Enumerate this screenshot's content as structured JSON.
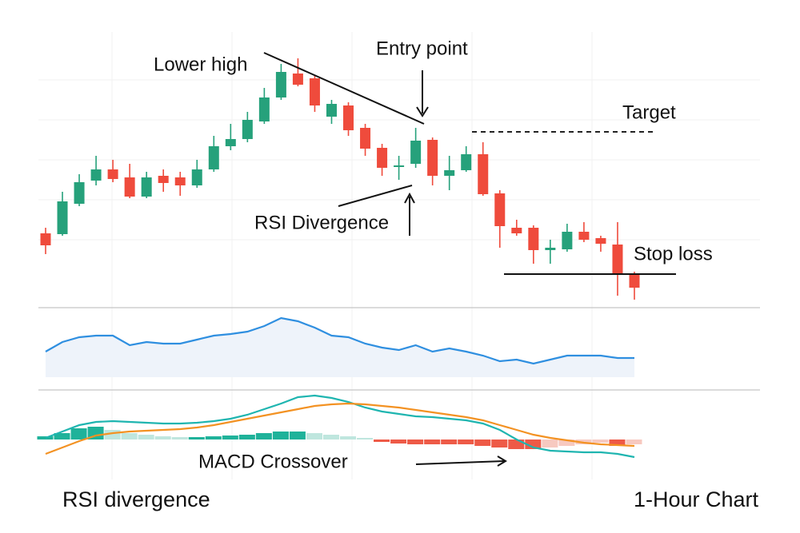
{
  "chart_data": [
    {
      "type": "candlestick",
      "up_color": "#26a17b",
      "down_color": "#ef4b3c",
      "ylim": [
        20,
        340
      ],
      "open": [
        108,
        107,
        145,
        174,
        188,
        178,
        154,
        180,
        178,
        168,
        188,
        217,
        226,
        248,
        278,
        308,
        302,
        254,
        268,
        240,
        215,
        191,
        195,
        225,
        180,
        187,
        207,
        158,
        115,
        115,
        87,
        88,
        110,
        102,
        94,
        57
      ],
      "high": [
        115,
        160,
        182,
        205,
        200,
        195,
        185,
        188,
        185,
        200,
        230,
        245,
        260,
        290,
        320,
        327,
        305,
        275,
        272,
        245,
        220,
        205,
        240,
        228,
        205,
        217,
        222,
        162,
        125,
        118,
        100,
        120,
        122,
        105,
        122,
        60
      ],
      "low": [
        82,
        105,
        142,
        168,
        172,
        152,
        152,
        160,
        155,
        165,
        185,
        212,
        222,
        245,
        275,
        292,
        260,
        245,
        230,
        205,
        180,
        175,
        190,
        168,
        162,
        185,
        155,
        90,
        105,
        70,
        70,
        85,
        97,
        85,
        30,
        25
      ],
      "close": [
        93,
        148,
        172,
        188,
        176,
        154,
        178,
        171,
        168,
        188,
        217,
        226,
        250,
        278,
        310,
        294,
        268,
        270,
        237,
        214,
        190,
        193,
        224,
        180,
        187,
        207,
        157,
        117,
        108,
        87,
        90,
        110,
        100,
        95,
        58,
        40
      ],
      "annotations": [
        "Lower high",
        "Entry point",
        "Target",
        "RSI Divergence",
        "Stop loss"
      ]
    },
    {
      "type": "line",
      "color": "#2f8fe0",
      "fill": "#eef3fa",
      "ylim": [
        0,
        100
      ],
      "values": [
        45,
        57,
        63,
        65,
        65,
        53,
        57,
        55,
        55,
        60,
        65,
        67,
        70,
        77,
        87,
        83,
        75,
        65,
        63,
        55,
        50,
        47,
        53,
        45,
        49,
        45,
        40,
        33,
        35,
        30,
        35,
        40,
        40,
        40,
        37,
        37
      ]
    },
    {
      "type": "macd",
      "ylim": [
        -50,
        60
      ],
      "series": [
        {
          "color": "#1fb5b0",
          "values": [
            2,
            10,
            18,
            22,
            23,
            22,
            21,
            20,
            20,
            21,
            23,
            26,
            31,
            38,
            45,
            53,
            55,
            52,
            47,
            40,
            35,
            32,
            29,
            28,
            26,
            24,
            20,
            12,
            0,
            -10,
            -14,
            -15,
            -16,
            -16,
            -18,
            -22
          ]
        },
        {
          "color": "#f39223",
          "values": [
            -18,
            -10,
            -2,
            5,
            8,
            10,
            11,
            12,
            13,
            15,
            18,
            22,
            26,
            30,
            34,
            38,
            42,
            44,
            45,
            44,
            42,
            40,
            37,
            34,
            31,
            28,
            24,
            18,
            12,
            6,
            2,
            -1,
            -4,
            -6,
            -7,
            -8
          ]
        }
      ],
      "histogram": [
        4,
        8,
        14,
        16,
        12,
        8,
        6,
        4,
        3,
        3,
        4,
        5,
        6,
        8,
        10,
        10,
        8,
        6,
        4,
        2,
        -3,
        -5,
        -6,
        -6,
        -6,
        -6,
        -8,
        -10,
        -12,
        -12,
        -10,
        -8,
        -6,
        -4,
        -8,
        -6
      ],
      "histogram_colors": [
        "#1fb29a",
        "#bfe6de",
        "#ee5a47",
        "#f7c9c0"
      ],
      "annotation": "MACD Crossover"
    }
  ],
  "caption": "RSI divergence",
  "timeframe": "1-Hour Chart"
}
